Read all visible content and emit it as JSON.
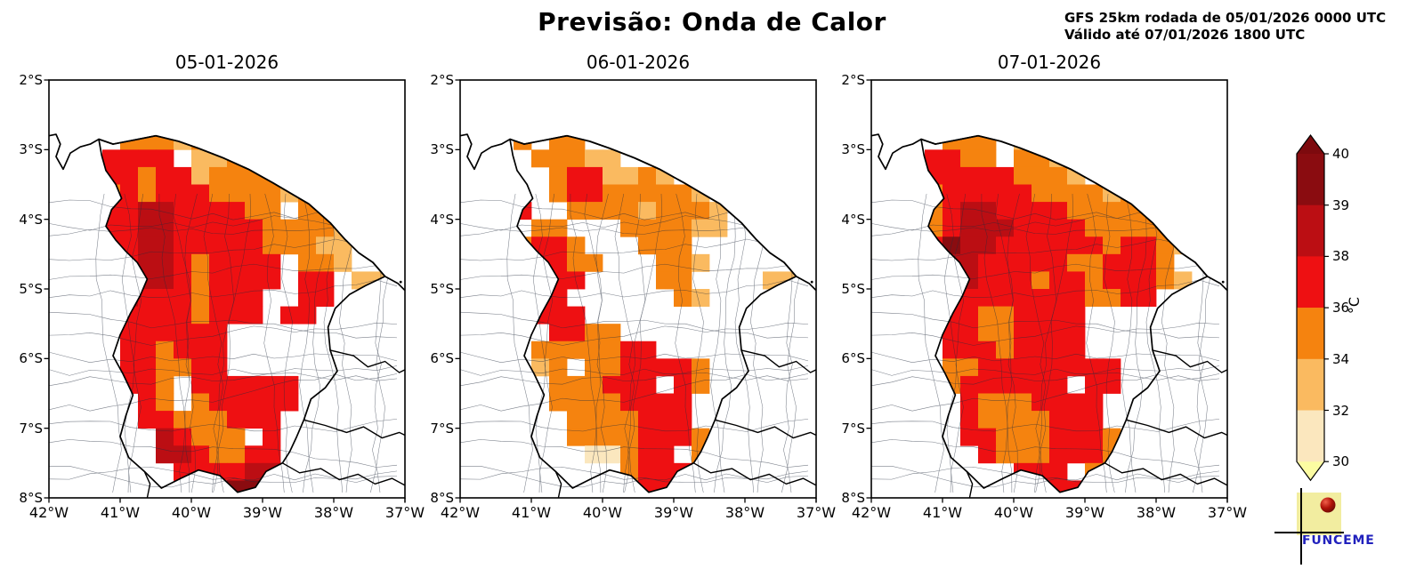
{
  "header": {
    "title": "Previsão: Onda de Calor",
    "note_line1": "GFS 25km rodada de 05/01/2026 0000 UTC",
    "note_line2": "Válido até 07/01/2026 1800 UTC"
  },
  "axes": {
    "lat_ticks": [
      "2°S",
      "3°S",
      "4°S",
      "5°S",
      "6°S",
      "7°S",
      "8°S"
    ],
    "lon_ticks": [
      "42°W",
      "41°W",
      "40°W",
      "39°W",
      "38°W",
      "37°W"
    ]
  },
  "colorbar": {
    "unit": "°C",
    "tick_labels": [
      "40",
      "39",
      "38",
      "36",
      "34",
      "32",
      "30"
    ],
    "segments_top_to_bottom": [
      {
        "range": "39-40",
        "color": "#8A0C10"
      },
      {
        "range": "38-39",
        "color": "#BB0E13"
      },
      {
        "range": "36-38",
        "color": "#EE1012"
      },
      {
        "range": "34-36",
        "color": "#F5830F"
      },
      {
        "range": "32-34",
        "color": "#FABA60"
      },
      {
        "range": "30-32",
        "color": "#FBE7BE"
      }
    ],
    "over_arrow_color": "#7D0A0E",
    "under_arrow_color": "#FCFCA2"
  },
  "logo": {
    "text": "FUNCEME"
  },
  "chart_data": {
    "type": "heatmap",
    "unit": "°C",
    "lon_range_deg_w": [
      42,
      37
    ],
    "lat_range_deg_s": [
      2,
      8
    ],
    "cell_size_deg": 0.25,
    "value_scale": {
      "a": {
        "range_c": [
          30,
          32
        ],
        "color": "#FBE7BE"
      },
      "b": {
        "range_c": [
          32,
          34
        ],
        "color": "#FABA60"
      },
      "c": {
        "range_c": [
          34,
          36
        ],
        "color": "#F5830F"
      },
      "d": {
        "range_c": [
          36,
          38
        ],
        "color": "#EE1012"
      },
      "e": {
        "range_c": [
          38,
          39
        ],
        "color": "#BB0E13"
      },
      "f": {
        "range_c": [
          39,
          40
        ],
        "color": "#8A0C10"
      }
    },
    "panels": [
      {
        "title": "05-01-2026",
        "grid": [
          "....................",
          "....................",
          "....................",
          "....cccbcc..........",
          "...dddd.bbcc........",
          "..cddcddbccccb......",
          "..ccdcdddccccbc.....",
          "..bddeeddddcc.cc....",
          "..bddeedddddccccb...",
          "..cddeedddddcccbb...",
          "..dddeedcdddd.ccb...",
          "..ddeeedcdddd.dd.bb.",
          "..deedddcddd..dd....",
          "...dddddcddd.dd.....",
          "....dddddd..........",
          "....ddcddd..........",
          "....ddccdd..........",
          "....ddc.dddddd......",
          ".....dc.cddddd......",
          ".....ddcccddd.......",
          "......edccc.d.......",
          "......eedccdd.......",
          ".......ddddee.......",
          "..........ff........"
        ]
      },
      {
        "title": "06-01-2026",
        "grid": [
          "....................",
          "....................",
          "....................",
          "...c.cc.............",
          "....cccbb...........",
          ".....cddbbcb........",
          ".....cddcccccb......",
          "...d..ccccbcccb.....",
          "....cc...ccccbb.....",
          "...cddc...ccc.......",
          "...dddcc...ccb......",
          "...dddd....cc....bb.",
          "...ddd......cb......",
          "...dddd.............",
          ".....ddcc...........",
          "....cccccdd.........",
          "....bc.ccddddc......",
          ".....cccddd.dc......",
          ".....ccccdddd.......",
          "......ccccddd.......",
          "......ccccdddc......",
          ".......aacdd.c......",
          ".........cddd.......",
          "..........dd........"
        ]
      },
      {
        "title": "07-01-2026",
        "grid": [
          "....................",
          "....................",
          "....................",
          "....ccc.b...........",
          "...ddcc.ccb.........",
          "...dddddcccb.b......",
          "...cdddddccccbcb....",
          "...cdeeddddcccccb...",
          "...cdeeeddddcccccb..",
          "...dfeeddddddcddcb..",
          "...deedddddccdddc...",
          "...deedddcddcdddcb..",
          "...dddddddddccdd....",
          "....ddccdddd........",
          "....ddccdddd........",
          "....dddcdddd........",
          "....ccdddddddd......",
          "....cdddddd.dd......",
          ".....dcccdddd.......",
          ".....dccccddd.......",
          ".....ddcccdddc......",
          "......dcccdddc......",
          "........ddd.cc......",
          "..........dd........"
        ]
      }
    ]
  }
}
